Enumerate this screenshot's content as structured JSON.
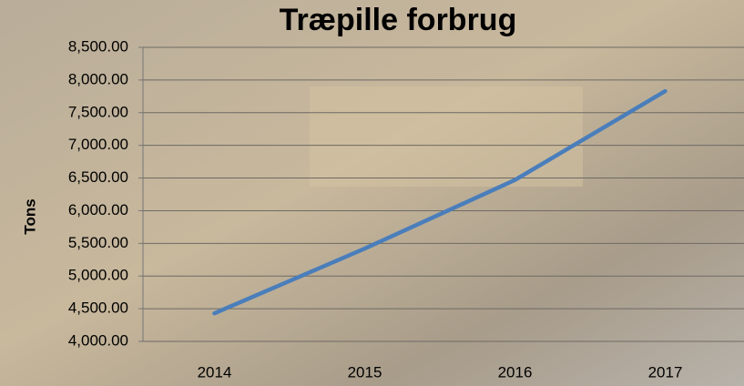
{
  "chart_data": {
    "type": "line",
    "title": "Træpille forbrug",
    "y_label": "Tons",
    "categories": [
      "2014",
      "2015",
      "2016",
      "2017"
    ],
    "series": [
      {
        "name": "Tons",
        "color": "#4a7ebb",
        "values": [
          4430,
          5420,
          6470,
          7830
        ]
      }
    ],
    "ylim": [
      4000,
      8500
    ],
    "yticks": [
      {
        "value": 4000,
        "label": "4,000.00"
      },
      {
        "value": 4500,
        "label": "4,500.00"
      },
      {
        "value": 5000,
        "label": "5,000.00"
      },
      {
        "value": 5500,
        "label": "5,500.00"
      },
      {
        "value": 6000,
        "label": "6,000.00"
      },
      {
        "value": 6500,
        "label": "6,500.00"
      },
      {
        "value": 7000,
        "label": "7,000.00"
      },
      {
        "value": 7500,
        "label": "7,500.00"
      },
      {
        "value": 8000,
        "label": "8,000.00"
      },
      {
        "value": 8500,
        "label": "8,500.00"
      }
    ],
    "grid": true
  }
}
